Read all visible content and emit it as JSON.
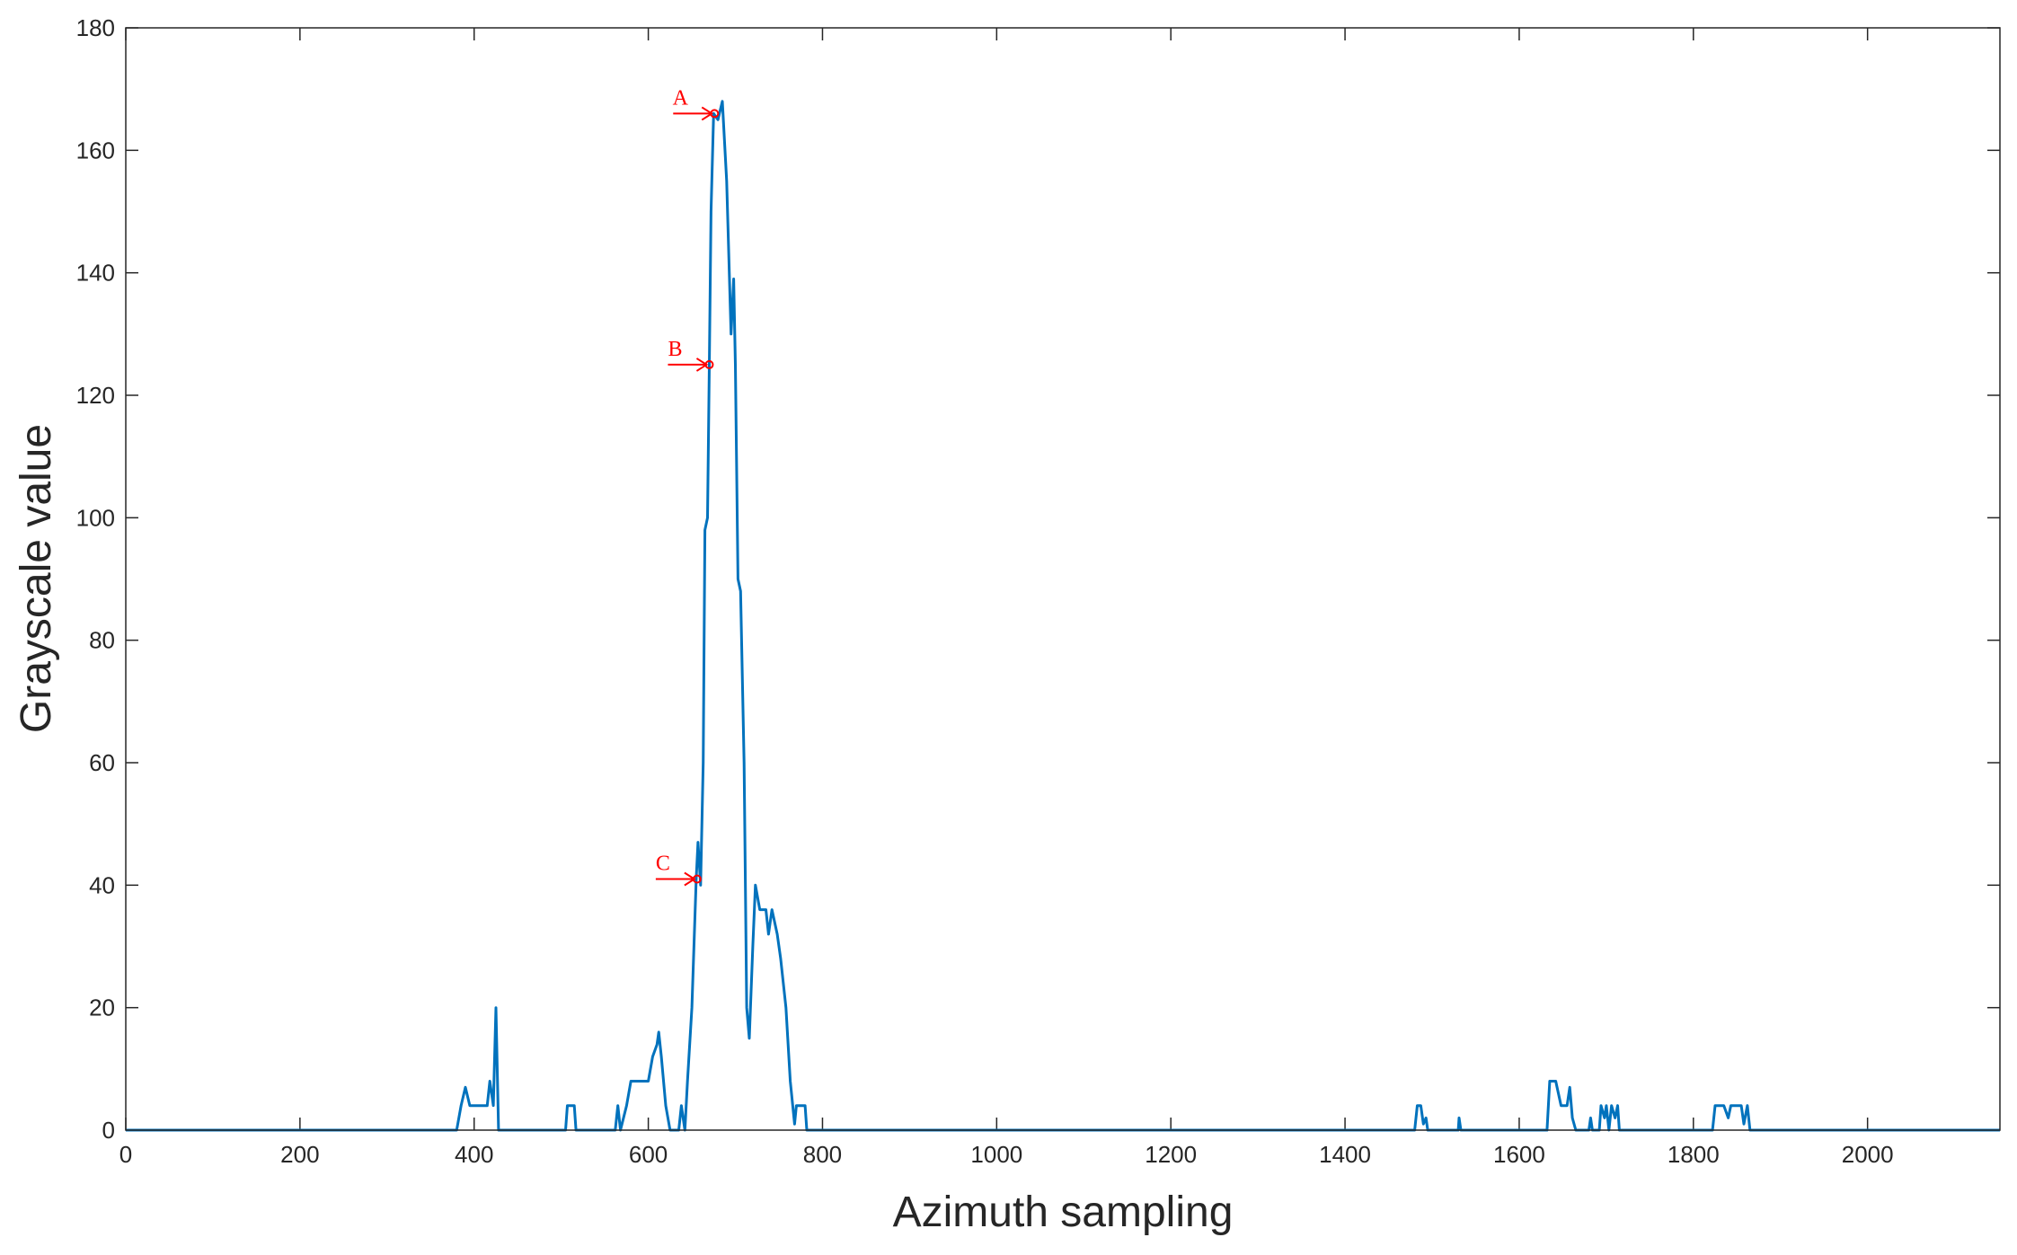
{
  "chart_data": {
    "type": "line",
    "xlabel": "Azimuth sampling",
    "ylabel": "Grayscale value",
    "color": "#0072bd",
    "annotation_color": "#ff0000",
    "xlim": [
      0,
      2152
    ],
    "ylim": [
      0,
      180
    ],
    "xticks": [
      0,
      200,
      400,
      600,
      800,
      1000,
      1200,
      1400,
      1600,
      1800,
      2000
    ],
    "yticks": [
      0,
      20,
      40,
      60,
      80,
      100,
      120,
      140,
      160,
      180
    ],
    "x": [
      0,
      380,
      385,
      390,
      395,
      400,
      415,
      418,
      422,
      425,
      428,
      505,
      507,
      515,
      517,
      562,
      565,
      568,
      575,
      580,
      600,
      605,
      610,
      612,
      615,
      620,
      625,
      635,
      638,
      642,
      645,
      650,
      655,
      657,
      660,
      663,
      665,
      668,
      670,
      672,
      675,
      680,
      685,
      690,
      695,
      698,
      700,
      703,
      706,
      710,
      713,
      716,
      720,
      723,
      728,
      735,
      738,
      742,
      748,
      752,
      758,
      763,
      768,
      770,
      780,
      782,
      1480,
      1483,
      1487,
      1490,
      1493,
      1495,
      1530,
      1531,
      1533,
      1632,
      1635,
      1642,
      1648,
      1655,
      1658,
      1661,
      1665,
      1680,
      1682,
      1684,
      1692,
      1694,
      1698,
      1700,
      1703,
      1706,
      1710,
      1713,
      1715,
      1822,
      1825,
      1835,
      1840,
      1843,
      1855,
      1858,
      1862,
      1865,
      2152
    ],
    "values": [
      0,
      0,
      4,
      7,
      4,
      4,
      4,
      8,
      4,
      20,
      0,
      0,
      4,
      4,
      0,
      0,
      4,
      0,
      4,
      8,
      8,
      12,
      14,
      16,
      12,
      4,
      0,
      0,
      4,
      0,
      8,
      20,
      41,
      47,
      40,
      60,
      98,
      100,
      125,
      150,
      166,
      165,
      168,
      155,
      130,
      139,
      125,
      90,
      88,
      60,
      20,
      15,
      30,
      40,
      36,
      36,
      32,
      36,
      32,
      28,
      20,
      8,
      1,
      4,
      4,
      0,
      0,
      4,
      4,
      1,
      2,
      0,
      0,
      2,
      0,
      0,
      8,
      8,
      4,
      4,
      7,
      2,
      0,
      0,
      2,
      0,
      0,
      4,
      2,
      4,
      0,
      4,
      2,
      4,
      0,
      0,
      4,
      4,
      2,
      4,
      4,
      1,
      4,
      0,
      0
    ],
    "annotations": [
      {
        "label": "A",
        "x": 676,
        "y": 166
      },
      {
        "label": "B",
        "x": 670,
        "y": 125
      },
      {
        "label": "C",
        "x": 656,
        "y": 41
      }
    ]
  }
}
